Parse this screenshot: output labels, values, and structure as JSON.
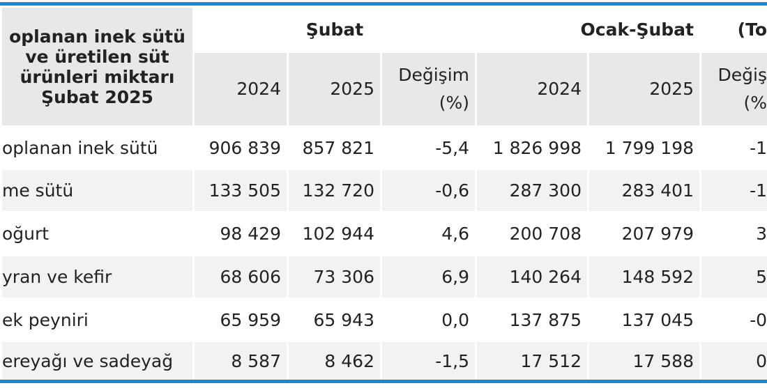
{
  "header": {
    "title_lines": [
      "oplanan inek sütü",
      "ve üretilen süt",
      "ürünleri miktarı",
      "Şubat 2025"
    ],
    "groups": [
      "Şubat",
      "Ocak-Şubat",
      "(To"
    ],
    "columns": [
      [
        "2024"
      ],
      [
        "2025"
      ],
      [
        "Değişim",
        "(%)"
      ],
      [
        "2024"
      ],
      [
        "2025"
      ],
      [
        "Değiş",
        "(%"
      ]
    ]
  },
  "table": {
    "rows": [
      [
        "oplanan inek sütü",
        "906 839",
        "857 821",
        "-5,4",
        "1 826 998",
        "1 799 198",
        "-1"
      ],
      [
        "me sütü",
        "133 505",
        "132 720",
        "-0,6",
        "287 300",
        "283 401",
        "-1"
      ],
      [
        "oğurt",
        "98 429",
        "102 944",
        "4,6",
        "200 708",
        "207 979",
        "3"
      ],
      [
        "yran ve kefir",
        "68 606",
        "73 306",
        "6,9",
        "140 264",
        "148 592",
        "5"
      ],
      [
        "ek peyniri",
        "65 959",
        "65 943",
        "0,0",
        "137 875",
        "137 045",
        "-0"
      ],
      [
        "ereyağı ve sadeyağ",
        "8 587",
        "8 462",
        "-1,5",
        "17 512",
        "17 588",
        "0"
      ]
    ]
  }
}
